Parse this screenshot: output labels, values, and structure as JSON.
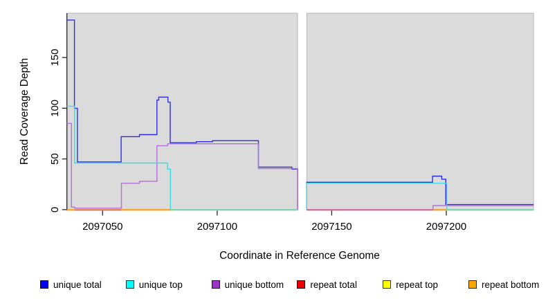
{
  "chart_data": {
    "type": "line",
    "subtype": "step-coverage",
    "title": "",
    "xlabel": "Coordinate in Reference Genome",
    "ylabel": "Read Coverage Depth",
    "xlim": [
      2097034.4,
      2097238.1
    ],
    "ylim": [
      0,
      194
    ],
    "grid": false,
    "legend_position": "bottom",
    "x_ticks": [
      {
        "value": 2097050,
        "label": "2097050"
      },
      {
        "value": 2097100,
        "label": "2097100"
      },
      {
        "value": 2097150,
        "label": "2097150"
      },
      {
        "value": 2097200,
        "label": "2097200"
      }
    ],
    "y_ticks": [
      {
        "value": 0,
        "label": "0"
      },
      {
        "value": 50,
        "label": "50"
      },
      {
        "value": 100,
        "label": "100"
      },
      {
        "value": 150,
        "label": "150"
      }
    ],
    "panels": [
      {
        "x0": 2097034.4,
        "x1": 2097135.1
      },
      {
        "x0": 2097139.1,
        "x1": 2097238.1
      }
    ],
    "gap_region": {
      "x0": 2097135.1,
      "x1": 2097139.1
    },
    "series": [
      {
        "name": "repeat top",
        "color": "#FFFF00",
        "segments": [
          [
            2097034.4,
            2097135.1,
            0
          ],
          [
            2097139.1,
            2097238.1,
            0
          ]
        ]
      },
      {
        "name": "repeat total",
        "color": "#D9608C",
        "segments": [
          [
            2097034.4,
            2097135.1,
            0
          ],
          [
            2097139.1,
            2097238.1,
            0
          ]
        ]
      },
      {
        "name": "repeat bottom",
        "color": "#FFA317",
        "segments": [
          [
            2097034.4,
            2097135.1,
            0
          ],
          [
            2097139.1,
            2097238.1,
            0
          ]
        ]
      },
      {
        "name": "unique total",
        "color": "#2D2DE8",
        "segments": [
          [
            2097034.4,
            2097037.7,
            187
          ],
          [
            2097037.7,
            2097039.0,
            100
          ],
          [
            2097039.0,
            2097058.1,
            47
          ],
          [
            2097058.1,
            2097066.1,
            72
          ],
          [
            2097066.1,
            2097073.7,
            74
          ],
          [
            2097073.7,
            2097074.5,
            108
          ],
          [
            2097074.5,
            2097078.5,
            111
          ],
          [
            2097078.5,
            2097079.5,
            106
          ],
          [
            2097079.5,
            2097090.9,
            66
          ],
          [
            2097090.9,
            2097098.0,
            67
          ],
          [
            2097098.0,
            2097118.0,
            68
          ],
          [
            2097118.0,
            2097132.6,
            42
          ],
          [
            2097132.6,
            2097135.1,
            40
          ],
          [
            2097135.1,
            2097135.1,
            0
          ],
          [
            2097139.1,
            2097139.1,
            0
          ],
          [
            2097139.1,
            2097194.0,
            27
          ],
          [
            2097194.0,
            2097198.0,
            33
          ],
          [
            2097198.0,
            2097199.8,
            30
          ],
          [
            2097199.8,
            2097238.1,
            5
          ]
        ]
      },
      {
        "name": "unique bottom",
        "color": "#B370DB",
        "segments": [
          [
            2097034.4,
            2097036.4,
            85
          ],
          [
            2097036.4,
            2097037.8,
            2.5
          ],
          [
            2097037.8,
            2097058.2,
            1.5
          ],
          [
            2097058.2,
            2097066.1,
            26
          ],
          [
            2097066.1,
            2097073.7,
            28
          ],
          [
            2097073.7,
            2097078.4,
            63
          ],
          [
            2097078.4,
            2097118.0,
            65
          ],
          [
            2097118.0,
            2097135.1,
            40.5
          ],
          [
            2097135.1,
            2097135.1,
            0
          ],
          [
            2097139.1,
            2097194.2,
            0
          ],
          [
            2097194.2,
            2097238.1,
            4
          ]
        ]
      },
      {
        "name": "unique top",
        "color": "#35DDE6",
        "segments": [
          [
            2097034.4,
            2097037.8,
            102
          ],
          [
            2097037.8,
            2097078.3,
            46
          ],
          [
            2097078.3,
            2097079.6,
            40
          ],
          [
            2097079.6,
            2097135.1,
            0
          ],
          [
            2097139.1,
            2097139.1,
            0
          ],
          [
            2097139.1,
            2097200.2,
            26
          ],
          [
            2097200.2,
            2097238.1,
            0
          ]
        ]
      }
    ],
    "zero_line_visible_segments": [
      {
        "start": 2097034.4,
        "end": 2097037.8,
        "color": "#FFA317"
      },
      {
        "start": 2097037.8,
        "end": 2097058.2,
        "color": "#D9608C"
      },
      {
        "start": 2097058.2,
        "end": 2097080.0,
        "color": "#FFA317"
      },
      {
        "start": 2097080.0,
        "end": 2097135.1,
        "color": "#8FD8A0"
      },
      {
        "start": 2097139.1,
        "end": 2097194.2,
        "color": "#D9608C"
      },
      {
        "start": 2097194.2,
        "end": 2097199.8,
        "color": "#FFA317"
      },
      {
        "start": 2097199.8,
        "end": 2097238.1,
        "color": "#8FD8A0"
      }
    ]
  },
  "legend": {
    "items": [
      {
        "label": "unique total",
        "color": "#0000EE"
      },
      {
        "label": "unique top",
        "color": "#00FFFF"
      },
      {
        "label": "unique bottom",
        "color": "#9932CC"
      },
      {
        "label": "repeat total",
        "color": "#EE0000"
      },
      {
        "label": "repeat top",
        "color": "#FFFF00"
      },
      {
        "label": "repeat bottom",
        "color": "#FFA500"
      }
    ]
  },
  "style_colors": {
    "panel_background": "#DBDBDB",
    "panel_border": "#ADADAD",
    "axis": "#262626",
    "text": "#000000",
    "page_background": "#FFFFFF"
  }
}
